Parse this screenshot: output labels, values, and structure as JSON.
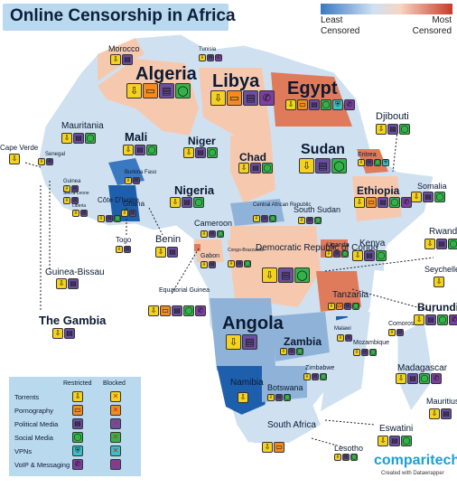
{
  "title": "Online Censorship in Africa",
  "scale": {
    "left_label": "Least\nCensored",
    "right_label": "Most\nCensored",
    "colors": [
      "#3a78c1",
      "#cfe1f1",
      "#f6d6c2",
      "#c93a2c"
    ]
  },
  "categories": {
    "T": {
      "name": "Torrents",
      "color": "#f4d21f",
      "glyph": "⇩"
    },
    "P": {
      "name": "Pornography",
      "color": "#f28c22",
      "glyph": "▭"
    },
    "M": {
      "name": "Political Media",
      "color": "#6b4fa0",
      "glyph": "▤"
    },
    "S": {
      "name": "Social Media",
      "color": "#34b24a",
      "glyph": "◯"
    },
    "V": {
      "name": "VPNs",
      "color": "#3bbfc4",
      "glyph": "⛨"
    },
    "C": {
      "name": "VoIP & Messaging",
      "color": "#7b3f9e",
      "glyph": "✆"
    }
  },
  "legend": {
    "restricted_header": "Restricted",
    "blocked_header": "Blocked"
  },
  "countries": [
    {
      "id": "algeria",
      "name": "Algeria",
      "icons": [
        "T",
        "P",
        "M",
        "S"
      ]
    },
    {
      "id": "libya",
      "name": "Libya",
      "icons": [
        "T",
        "P",
        "M",
        "C"
      ]
    },
    {
      "id": "egypt",
      "name": "Egypt",
      "icons": [
        "T",
        "P",
        "M",
        "S",
        "V",
        "C"
      ]
    },
    {
      "id": "morocco",
      "name": "Morocco",
      "icons": [
        "T",
        "M"
      ]
    },
    {
      "id": "tunisia",
      "name": "Tunisia",
      "icons": [
        "T",
        "M",
        "C"
      ]
    },
    {
      "id": "mauritania",
      "name": "Mauritania",
      "icons": [
        "T",
        "M",
        "S"
      ]
    },
    {
      "id": "mali",
      "name": "Mali",
      "icons": [
        "T",
        "M",
        "S"
      ]
    },
    {
      "id": "niger",
      "name": "Niger",
      "icons": [
        "T",
        "M",
        "S"
      ]
    },
    {
      "id": "chad",
      "name": "Chad",
      "icons": [
        "T",
        "M",
        "S"
      ]
    },
    {
      "id": "sudan",
      "name": "Sudan",
      "icons": [
        "T",
        "M",
        "S"
      ]
    },
    {
      "id": "djibouti",
      "name": "Djibouti",
      "icons": [
        "T",
        "M",
        "S"
      ]
    },
    {
      "id": "cape-verde",
      "name": "Cape Verde",
      "icons": [
        "T"
      ]
    },
    {
      "id": "senegal",
      "name": "Senegal",
      "icons": [
        "T",
        "M"
      ]
    },
    {
      "id": "guinea",
      "name": "Guinea",
      "icons": [
        "T",
        "M"
      ]
    },
    {
      "id": "sierra-leone",
      "name": "Sierra Leone",
      "icons": [
        "T",
        "M"
      ]
    },
    {
      "id": "liberia",
      "name": "Liberia",
      "icons": [
        "T",
        "M"
      ]
    },
    {
      "id": "burkina-faso",
      "name": "Burkina Faso",
      "icons": [
        "T",
        "M"
      ]
    },
    {
      "id": "cote-divoire",
      "name": "Côte D'Ivoire",
      "icons": [
        "T",
        "M",
        "S"
      ]
    },
    {
      "id": "ghana",
      "name": "Ghana",
      "icons": [
        "T",
        "M"
      ]
    },
    {
      "id": "togo",
      "name": "Togo",
      "icons": [
        "T",
        "M"
      ]
    },
    {
      "id": "benin",
      "name": "Benin",
      "icons": [
        "T",
        "M"
      ]
    },
    {
      "id": "nigeria",
      "name": "Nigeria",
      "icons": [
        "T",
        "M",
        "S"
      ]
    },
    {
      "id": "eritrea",
      "name": "Eritrea",
      "icons": [
        "T",
        "M",
        "S",
        "V"
      ]
    },
    {
      "id": "ethiopia",
      "name": "Ethiopia",
      "icons": [
        "T",
        "P",
        "M",
        "S",
        "C"
      ]
    },
    {
      "id": "somalia",
      "name": "Somalia",
      "icons": [
        "T",
        "M",
        "S"
      ]
    },
    {
      "id": "car",
      "name": "Central African Republic",
      "icons": [
        "T",
        "M",
        "S"
      ]
    },
    {
      "id": "south-sudan",
      "name": "South Sudan",
      "icons": [
        "T",
        "M",
        "S"
      ]
    },
    {
      "id": "cameroon",
      "name": "Cameroon",
      "icons": [
        "T",
        "M",
        "S"
      ]
    },
    {
      "id": "gabon",
      "name": "Gabon",
      "icons": [
        "T",
        "M"
      ]
    },
    {
      "id": "congo",
      "name": "Congo-Brazzaville",
      "icons": [
        "T",
        "M",
        "S"
      ]
    },
    {
      "id": "drc",
      "name": "Democratic Republic of Congo",
      "icons": [
        "T",
        "M",
        "S"
      ]
    },
    {
      "id": "uganda",
      "name": "Uganda",
      "icons": [
        "T",
        "M",
        "S"
      ]
    },
    {
      "id": "kenya",
      "name": "Kenya",
      "icons": [
        "T",
        "M",
        "S"
      ]
    },
    {
      "id": "rwanda",
      "name": "Rwanda",
      "icons": [
        "T",
        "M",
        "S"
      ]
    },
    {
      "id": "seychelles",
      "name": "Seychelles",
      "icons": [
        "T"
      ]
    },
    {
      "id": "burundi",
      "name": "Burundi",
      "icons": [
        "T",
        "M",
        "S",
        "C"
      ]
    },
    {
      "id": "guinea-bissau",
      "name": "Guinea-Bissau",
      "icons": [
        "T",
        "M"
      ]
    },
    {
      "id": "the-gambia",
      "name": "The Gambia",
      "icons": [
        "T",
        "M"
      ]
    },
    {
      "id": "equatorial-guinea",
      "name": "Equatorial Guinea",
      "icons": [
        "T",
        "P",
        "M",
        "S",
        "C"
      ]
    },
    {
      "id": "tanzania",
      "name": "Tanzania",
      "icons": [
        "T",
        "P",
        "M",
        "S"
      ]
    },
    {
      "id": "comoros",
      "name": "Comoros",
      "icons": [
        "T",
        "M"
      ]
    },
    {
      "id": "angola",
      "name": "Angola",
      "icons": [
        "T",
        "M"
      ]
    },
    {
      "id": "zambia",
      "name": "Zambia",
      "icons": [
        "T",
        "M",
        "S"
      ]
    },
    {
      "id": "malawi",
      "name": "Malawi",
      "icons": [
        "T",
        "M"
      ]
    },
    {
      "id": "mozambique",
      "name": "Mozambique",
      "icons": [
        "T",
        "M",
        "S"
      ]
    },
    {
      "id": "madagascar",
      "name": "Madagascar",
      "icons": [
        "T",
        "M",
        "S",
        "C"
      ]
    },
    {
      "id": "zimbabwe",
      "name": "Zimbabwe",
      "icons": [
        "T",
        "M",
        "S"
      ]
    },
    {
      "id": "namibia",
      "name": "Namibia",
      "icons": [
        "T"
      ]
    },
    {
      "id": "botswana",
      "name": "Botswana",
      "icons": [
        "T",
        "M",
        "S"
      ]
    },
    {
      "id": "mauritius",
      "name": "Mauritius",
      "icons": [
        "T",
        "M"
      ]
    },
    {
      "id": "eswatini",
      "name": "Eswatini",
      "icons": [
        "T",
        "M",
        "S"
      ]
    },
    {
      "id": "south-africa",
      "name": "South Africa",
      "icons": [
        "T",
        "P"
      ]
    },
    {
      "id": "lesotho",
      "name": "Lesotho",
      "icons": [
        "T",
        "M",
        "S"
      ]
    }
  ],
  "brand": "comparitech",
  "credit": "Created with Datawrapper"
}
